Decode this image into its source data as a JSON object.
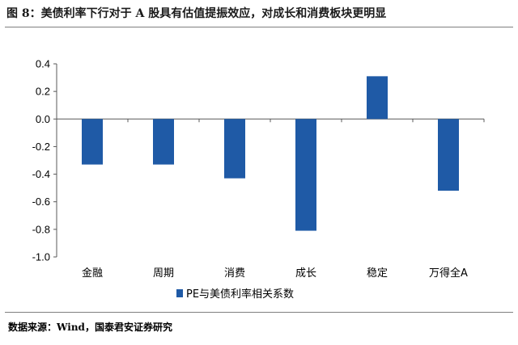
{
  "header": {
    "title": "图 8：美债利率下行对于 A 股具有估值提振效应，对成长和消费板块更明显"
  },
  "footer": {
    "source": "数据来源：Wind，国泰君安证券研究"
  },
  "chart_data": {
    "type": "bar",
    "categories": [
      "金融",
      "周期",
      "消费",
      "成长",
      "稳定",
      "万得全A"
    ],
    "series": [
      {
        "name": "PE与美债利率相关系数",
        "values": [
          -0.33,
          -0.33,
          -0.43,
          -0.81,
          0.31,
          -0.52
        ]
      }
    ],
    "yticks": [
      "0.4",
      "0.2",
      "0.0",
      "-0.2",
      "-0.4",
      "-0.6",
      "-0.8",
      "-1.0"
    ],
    "ylim": [
      -1.0,
      0.4
    ],
    "bar_color": "#1F5AA6",
    "grid": false,
    "legend_position": "bottom"
  }
}
